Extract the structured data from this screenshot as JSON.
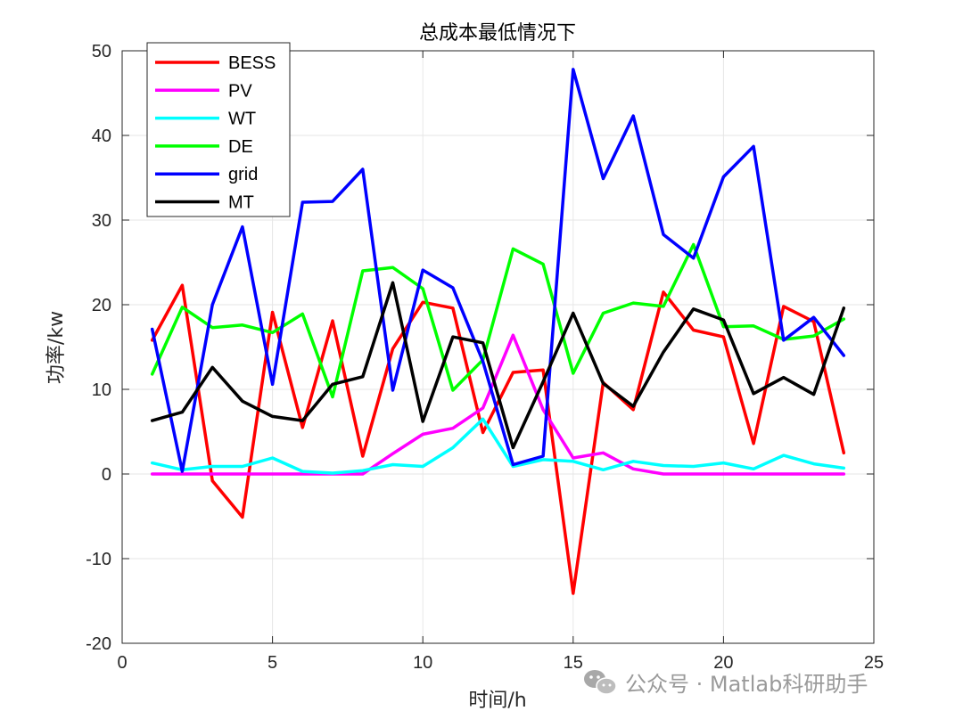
{
  "chart_data": {
    "type": "line",
    "title": "总成本最低情况下",
    "xlabel": "时间/h",
    "ylabel": "功率/kw",
    "xlim": [
      0,
      25
    ],
    "ylim": [
      -20,
      50
    ],
    "xticks": [
      0,
      5,
      10,
      15,
      20,
      25
    ],
    "yticks": [
      -20,
      -10,
      0,
      10,
      20,
      30,
      40,
      50
    ],
    "grid": true,
    "legend_position": "top-left",
    "x": [
      1,
      2,
      3,
      4,
      5,
      6,
      7,
      8,
      9,
      10,
      11,
      12,
      13,
      14,
      15,
      16,
      17,
      18,
      19,
      20,
      21,
      22,
      23,
      24
    ],
    "series": [
      {
        "name": "BESS",
        "color": "#ff0000",
        "values": [
          15.8,
          22.3,
          -0.8,
          -5.1,
          19.1,
          5.5,
          18.1,
          2.1,
          14.8,
          20.3,
          19.6,
          4.9,
          12.0,
          12.3,
          -14.1,
          10.8,
          7.6,
          21.5,
          17.0,
          16.2,
          3.6,
          19.8,
          18.0,
          2.5
        ]
      },
      {
        "name": "PV",
        "color": "#ff00ff",
        "values": [
          0,
          0,
          0,
          0,
          0,
          0,
          0,
          0,
          2.4,
          4.7,
          5.4,
          7.8,
          16.4,
          7.6,
          1.9,
          2.5,
          0.6,
          0,
          0,
          0,
          0,
          0,
          0,
          0
        ]
      },
      {
        "name": "WT",
        "color": "#00ffff",
        "values": [
          1.3,
          0.5,
          0.9,
          0.9,
          1.9,
          0.3,
          0.1,
          0.4,
          1.1,
          0.9,
          3.1,
          6.5,
          0.9,
          1.7,
          1.5,
          0.5,
          1.5,
          1.0,
          0.9,
          1.3,
          0.6,
          2.2,
          1.2,
          0.7
        ]
      },
      {
        "name": "DE",
        "color": "#00ff00",
        "values": [
          11.8,
          19.7,
          17.3,
          17.6,
          16.7,
          18.9,
          9.1,
          24.0,
          24.4,
          21.9,
          9.9,
          13.5,
          26.6,
          24.8,
          11.9,
          19.0,
          20.2,
          19.8,
          27.1,
          17.4,
          17.5,
          15.9,
          16.3,
          18.3
        ]
      },
      {
        "name": "grid",
        "color": "#0000ff",
        "values": [
          17.1,
          0.3,
          20.0,
          29.2,
          10.6,
          32.1,
          32.2,
          36.0,
          9.9,
          24.1,
          22.0,
          13.3,
          1.1,
          2.1,
          47.8,
          34.9,
          42.3,
          28.3,
          25.5,
          35.1,
          38.7,
          15.8,
          18.5,
          14.0
        ]
      },
      {
        "name": "MT",
        "color": "#000000",
        "values": [
          6.3,
          7.3,
          12.6,
          8.6,
          6.8,
          6.3,
          10.6,
          11.5,
          22.6,
          6.2,
          16.2,
          15.5,
          3.1,
          10.9,
          19.0,
          10.7,
          8.0,
          14.4,
          19.5,
          18.2,
          9.5,
          11.4,
          9.4,
          19.6
        ]
      }
    ]
  },
  "watermark": {
    "icon": "wechat-icon",
    "text": "公众号 · Matlab科研助手"
  }
}
